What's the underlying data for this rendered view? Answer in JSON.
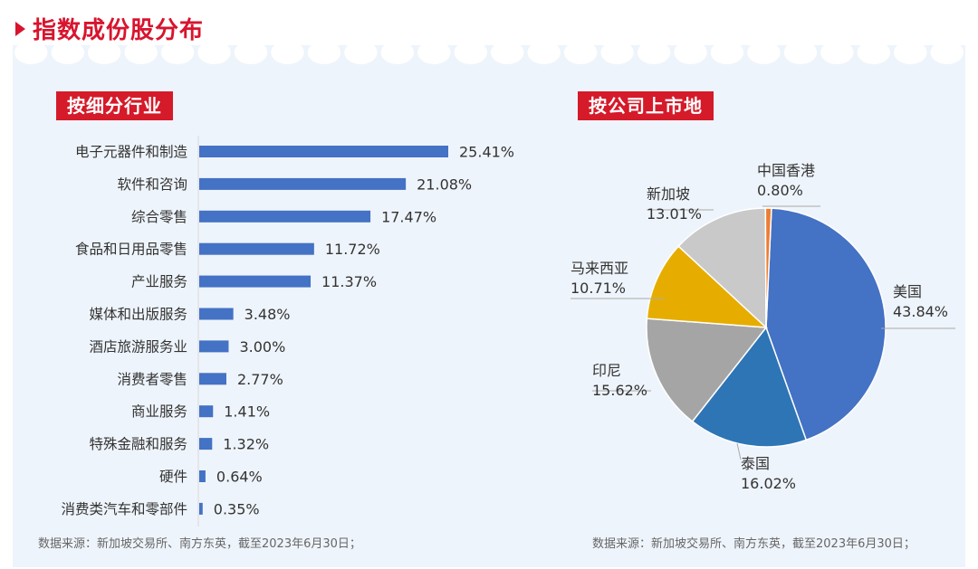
{
  "header": {
    "title": "指数成份股分布"
  },
  "left": {
    "tag": "按细分行业",
    "source": "数据来源：新加坡交易所、南方东英，截至2023年6月30日；"
  },
  "right": {
    "tag": "按公司上市地",
    "source": "数据来源：新加坡交易所、南方东英，截至2023年6月30日；"
  },
  "colors": {
    "accent": "#d51a2a",
    "panel_bg": "#eef4fb",
    "bar": "#4472c4"
  },
  "chart_data": [
    {
      "type": "bar",
      "orientation": "horizontal",
      "categories": [
        "电子元器件和制造",
        "软件和咨询",
        "综合零售",
        "食品和日用品零售",
        "产业服务",
        "媒体和出版服务",
        "酒店旅游服务业",
        "消费者零售",
        "商业服务",
        "特殊金融和服务",
        "硬件",
        "消费类汽车和零部件"
      ],
      "values": [
        25.41,
        21.08,
        17.47,
        11.72,
        11.37,
        3.48,
        3.0,
        2.77,
        1.41,
        1.32,
        0.64,
        0.35
      ],
      "labels": [
        "25.41%",
        "21.08%",
        "17.47%",
        "11.72%",
        "11.37%",
        "3.48%",
        "3.00%",
        "2.77%",
        "1.41%",
        "1.32%",
        "0.64%",
        "0.35%"
      ],
      "unit": "%",
      "color": "#4472c4"
    },
    {
      "type": "pie",
      "slices": [
        {
          "name": "美国",
          "value": 43.84,
          "label": "43.84%",
          "color": "#4472c4"
        },
        {
          "name": "泰国",
          "value": 16.02,
          "label": "16.02%",
          "color": "#2e75b6"
        },
        {
          "name": "印尼",
          "value": 15.62,
          "label": "15.62%",
          "color": "#a5a5a5"
        },
        {
          "name": "马来西亚",
          "value": 10.71,
          "label": "10.71%",
          "color": "#e6ad00"
        },
        {
          "name": "新加坡",
          "value": 13.01,
          "label": "13.01%",
          "color": "#c9c9c9"
        },
        {
          "name": "中国香港",
          "value": 0.8,
          "label": "0.80%",
          "color": "#ed7d31"
        }
      ]
    }
  ]
}
